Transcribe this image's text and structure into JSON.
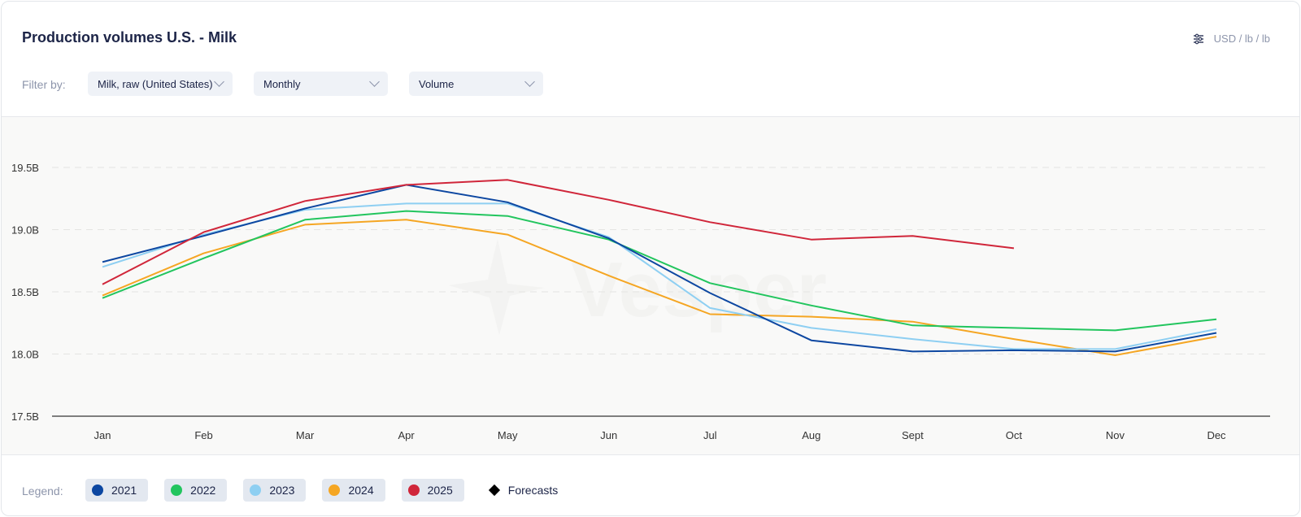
{
  "header": {
    "title": "Production volumes U.S. - Milk",
    "units_label": "USD / lb / lb",
    "units_icon": "sliders-icon"
  },
  "filters": {
    "label": "Filter by:",
    "product": "Milk, raw (United States)",
    "frequency": "Monthly",
    "measure": "Volume"
  },
  "watermark": "Vesper",
  "legend": {
    "label": "Legend:",
    "forecasts_label": "Forecasts",
    "forecasts_icon": "diamond-icon"
  },
  "chart_data": {
    "type": "line",
    "title": "Production volumes U.S. - Milk",
    "xlabel": "",
    "ylabel": "",
    "categories": [
      "Jan",
      "Feb",
      "Mar",
      "Apr",
      "May",
      "Jun",
      "Jul",
      "Aug",
      "Sept",
      "Oct",
      "Nov",
      "Dec"
    ],
    "ylim": [
      17.5,
      19.9
    ],
    "yticks": [
      17.5,
      18.0,
      18.5,
      19.0,
      19.5
    ],
    "ytick_labels": [
      "17.5B",
      "18.0B",
      "18.5B",
      "19.0B",
      "19.5B"
    ],
    "grid": true,
    "legend_position": "bottom-left",
    "series": [
      {
        "name": "2021",
        "color": "#0d47a1",
        "values": [
          18.74,
          18.95,
          19.17,
          19.36,
          19.22,
          18.93,
          18.49,
          18.11,
          18.02,
          18.03,
          18.02,
          18.17
        ]
      },
      {
        "name": "2022",
        "color": "#22c55e",
        "values": [
          18.45,
          18.77,
          19.08,
          19.15,
          19.11,
          18.92,
          18.57,
          18.39,
          18.23,
          18.21,
          18.19,
          18.28
        ]
      },
      {
        "name": "2023",
        "color": "#8ecff2",
        "values": [
          18.7,
          18.96,
          19.16,
          19.21,
          19.21,
          18.94,
          18.37,
          18.21,
          18.12,
          18.04,
          18.04,
          18.2
        ]
      },
      {
        "name": "2024",
        "color": "#f5a623",
        "values": [
          18.47,
          18.81,
          19.04,
          19.08,
          18.96,
          18.63,
          18.32,
          18.3,
          18.26,
          18.12,
          17.99,
          18.14
        ]
      },
      {
        "name": "2025",
        "color": "#d0263a",
        "values": [
          18.56,
          18.98,
          19.23,
          19.36,
          19.4,
          19.24,
          19.06,
          18.92,
          18.95,
          18.85,
          null,
          null
        ]
      }
    ]
  }
}
